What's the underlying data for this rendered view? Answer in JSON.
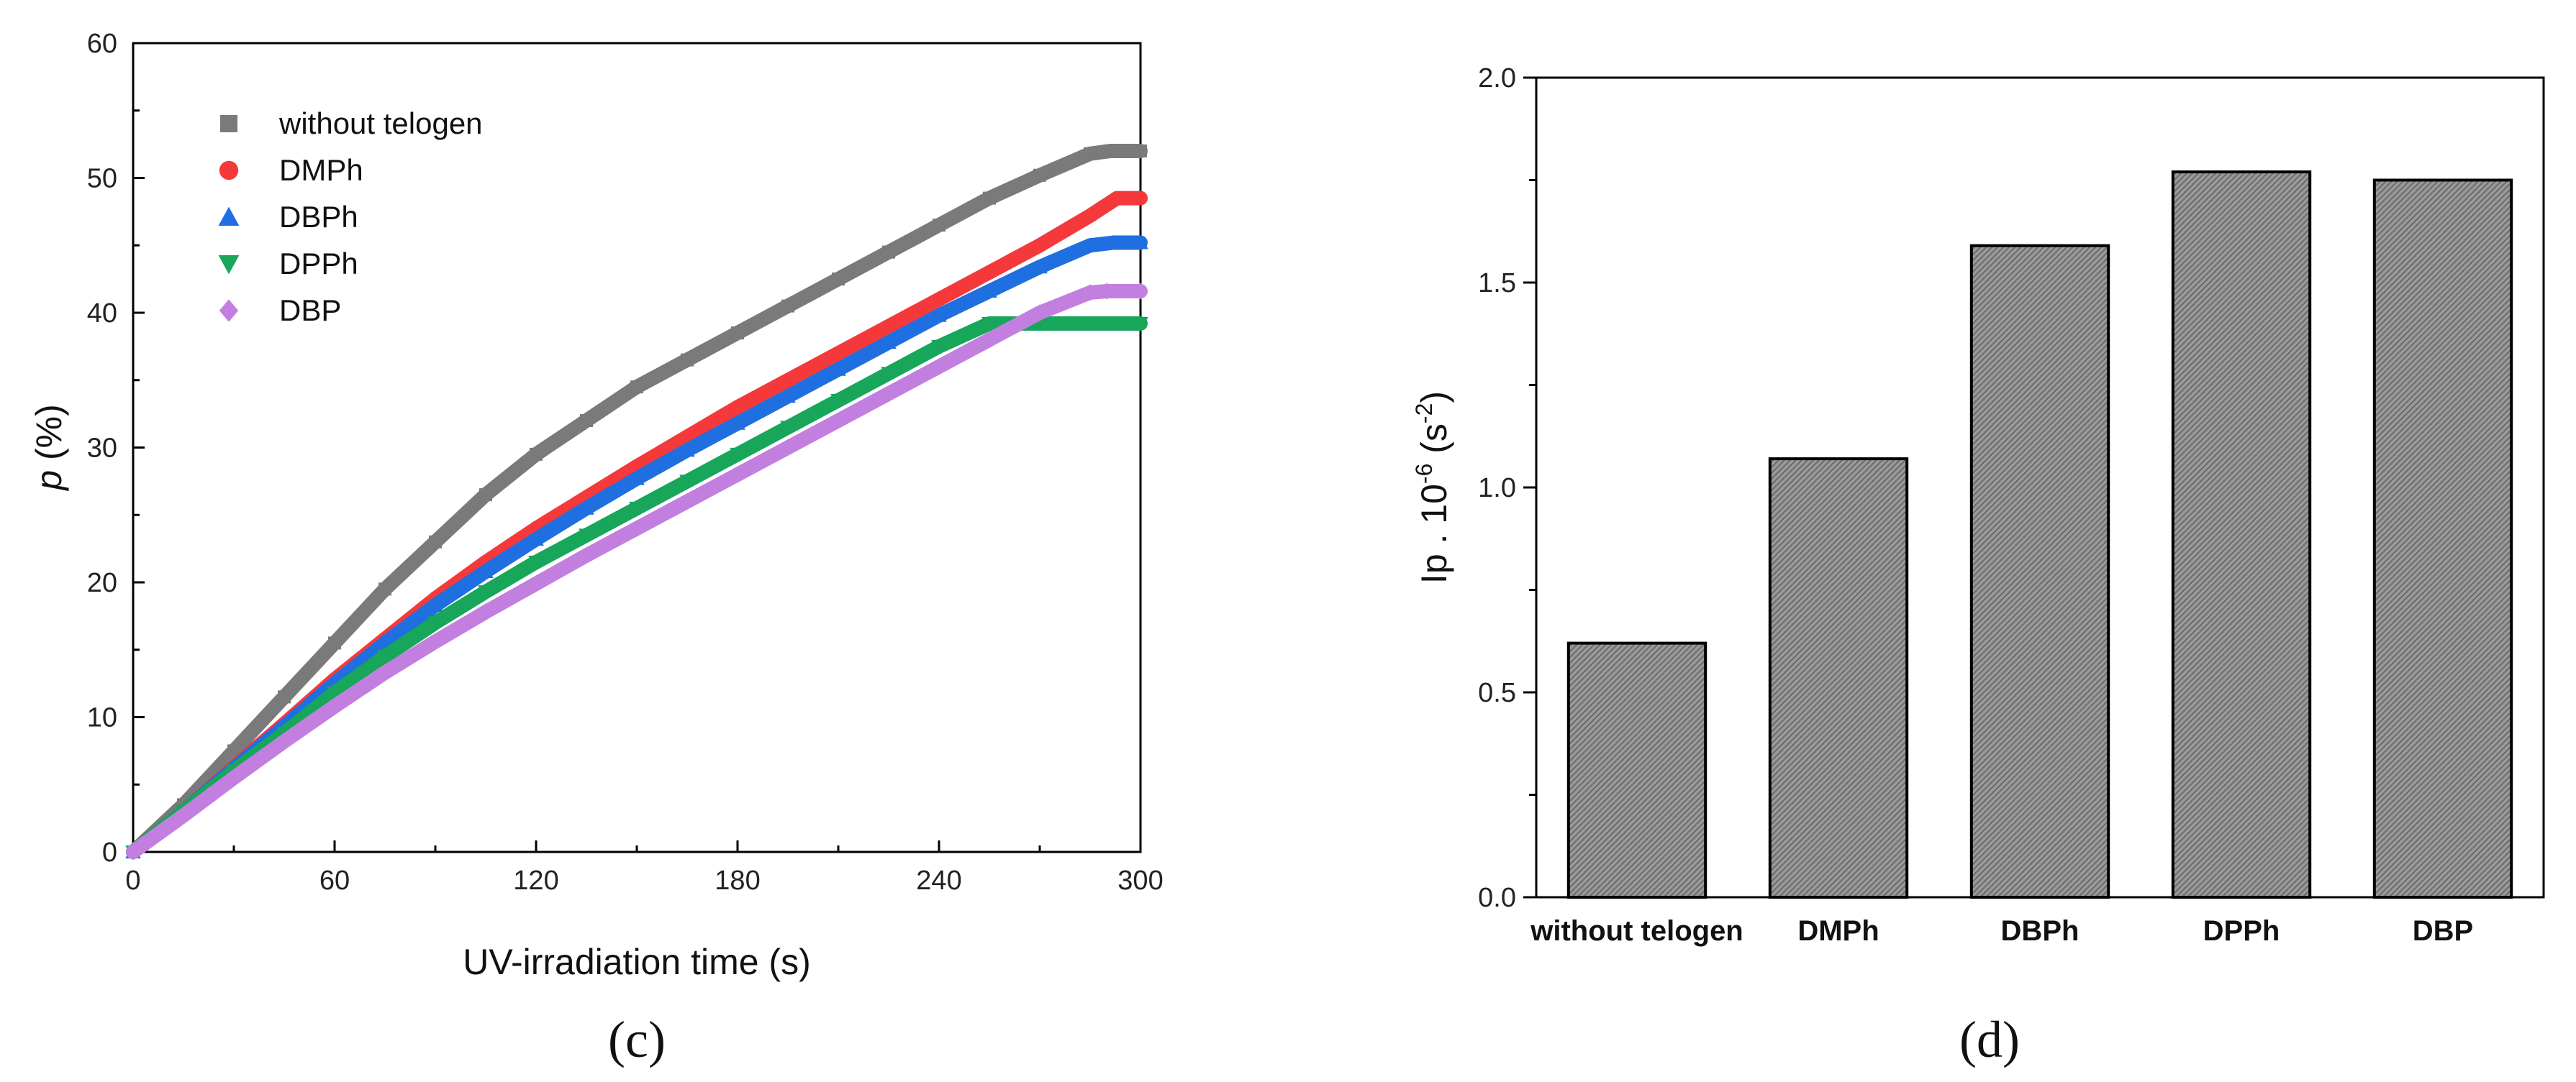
{
  "chart_data": [
    {
      "type": "line",
      "panel_label": "(c)",
      "xlabel": "UV-irradiation time (s)",
      "ylabel_italic": "p",
      "ylabel_rest": " (%)",
      "xlim": [
        0,
        300
      ],
      "ylim": [
        0,
        60
      ],
      "x_ticks": [
        0,
        60,
        120,
        180,
        240,
        300
      ],
      "y_ticks": [
        0,
        10,
        20,
        30,
        40,
        50,
        60
      ],
      "legend_position": "top-left",
      "series": [
        {
          "name": "without telogen",
          "color": "#7a7a7a",
          "marker": "square",
          "x": [
            0,
            15,
            30,
            45,
            60,
            75,
            90,
            105,
            120,
            135,
            150,
            165,
            180,
            195,
            210,
            225,
            240,
            255,
            270,
            285,
            291,
            300
          ],
          "y": [
            0,
            3.5,
            7.5,
            11.5,
            15.5,
            19.5,
            23,
            26.5,
            29.5,
            32,
            34.5,
            36.5,
            38.5,
            40.5,
            42.5,
            44.5,
            46.5,
            48.5,
            50.2,
            51.8,
            52,
            52
          ]
        },
        {
          "name": "DMPh",
          "color": "#f5393b",
          "marker": "circle",
          "x": [
            0,
            15,
            30,
            45,
            60,
            75,
            90,
            105,
            120,
            135,
            150,
            165,
            180,
            195,
            210,
            225,
            240,
            255,
            270,
            285,
            293,
            300
          ],
          "y": [
            0,
            3,
            6.3,
            9.5,
            12.8,
            15.8,
            18.8,
            21.5,
            24,
            26.3,
            28.6,
            30.8,
            33,
            35,
            37,
            39,
            41,
            43,
            45,
            47.2,
            48.5,
            48.5
          ]
        },
        {
          "name": "DBPh",
          "color": "#1f6fe0",
          "marker": "triangle-up",
          "x": [
            0,
            15,
            30,
            45,
            60,
            75,
            90,
            105,
            120,
            135,
            150,
            165,
            180,
            195,
            210,
            225,
            240,
            255,
            270,
            285,
            292,
            300
          ],
          "y": [
            0,
            3,
            6.2,
            9.3,
            12.5,
            15.5,
            18.3,
            20.8,
            23.2,
            25.5,
            27.7,
            29.8,
            31.8,
            33.8,
            35.8,
            37.8,
            39.8,
            41.6,
            43.4,
            45,
            45.2,
            45.2
          ]
        },
        {
          "name": "DPPh",
          "color": "#17a65a",
          "marker": "triangle-down",
          "x": [
            0,
            15,
            30,
            45,
            60,
            75,
            90,
            105,
            120,
            135,
            150,
            165,
            180,
            195,
            210,
            225,
            240,
            255,
            270,
            285,
            300
          ],
          "y": [
            0,
            3,
            6,
            8.8,
            11.8,
            14.5,
            17,
            19.3,
            21.5,
            23.5,
            25.5,
            27.5,
            29.5,
            31.5,
            33.5,
            35.5,
            37.5,
            39.2,
            39.2,
            39.2,
            39.2
          ]
        },
        {
          "name": "DBP",
          "color": "#c27fe0",
          "marker": "diamond",
          "x": [
            0,
            15,
            30,
            45,
            60,
            75,
            90,
            105,
            120,
            135,
            150,
            165,
            180,
            195,
            210,
            225,
            240,
            255,
            270,
            285,
            290,
            300
          ],
          "y": [
            0,
            2.7,
            5.5,
            8.2,
            10.8,
            13.3,
            15.6,
            17.8,
            19.9,
            22,
            24,
            26,
            28,
            30,
            32,
            34,
            36,
            38,
            40,
            41.5,
            41.6,
            41.6
          ]
        }
      ]
    },
    {
      "type": "bar",
      "panel_label": "(d)",
      "ylabel_main": "Ip . 10",
      "ylabel_exp": "-6",
      "ylabel_unit_open": " (s",
      "ylabel_unit_exp": "-2",
      "ylabel_unit_close": ")",
      "ylim": [
        0.0,
        2.0
      ],
      "y_ticks": [
        "0.0",
        "0.5",
        "1.0",
        "1.5",
        "2.0"
      ],
      "categories": [
        "without telogen",
        "DMPh",
        "DBPh",
        "DPPh",
        "DBP"
      ],
      "values": [
        0.62,
        1.07,
        1.59,
        1.77,
        1.75
      ],
      "bar_color": "#8f8f8f"
    }
  ]
}
